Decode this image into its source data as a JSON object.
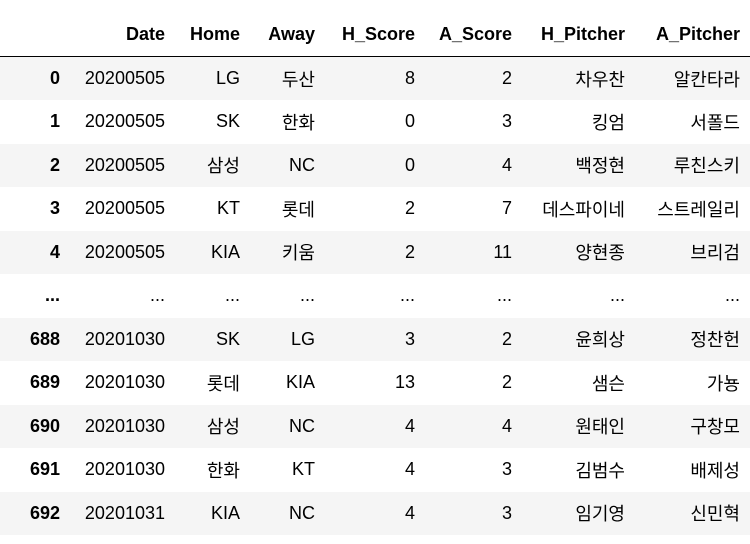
{
  "table": {
    "index_header": "",
    "columns": [
      "Date",
      "Home",
      "Away",
      "H_Score",
      "A_Score",
      "H_Pitcher",
      "A_Pitcher"
    ],
    "rows": [
      {
        "index": "0",
        "cells": [
          "20200505",
          "LG",
          "두산",
          "8",
          "2",
          "차우찬",
          "알칸타라"
        ]
      },
      {
        "index": "1",
        "cells": [
          "20200505",
          "SK",
          "한화",
          "0",
          "3",
          "킹엄",
          "서폴드"
        ]
      },
      {
        "index": "2",
        "cells": [
          "20200505",
          "삼성",
          "NC",
          "0",
          "4",
          "백정현",
          "루친스키"
        ]
      },
      {
        "index": "3",
        "cells": [
          "20200505",
          "KT",
          "롯데",
          "2",
          "7",
          "데스파이네",
          "스트레일리"
        ]
      },
      {
        "index": "4",
        "cells": [
          "20200505",
          "KIA",
          "키움",
          "2",
          "11",
          "양현종",
          "브리검"
        ]
      },
      {
        "index": "...",
        "cells": [
          "...",
          "...",
          "...",
          "...",
          "...",
          "...",
          "..."
        ]
      },
      {
        "index": "688",
        "cells": [
          "20201030",
          "SK",
          "LG",
          "3",
          "2",
          "윤희상",
          "정찬헌"
        ]
      },
      {
        "index": "689",
        "cells": [
          "20201030",
          "롯데",
          "KIA",
          "13",
          "2",
          "샘슨",
          "가뇽"
        ]
      },
      {
        "index": "690",
        "cells": [
          "20201030",
          "삼성",
          "NC",
          "4",
          "4",
          "원태인",
          "구창모"
        ]
      },
      {
        "index": "691",
        "cells": [
          "20201030",
          "한화",
          "KT",
          "4",
          "3",
          "김범수",
          "배제성"
        ]
      },
      {
        "index": "692",
        "cells": [
          "20201031",
          "KIA",
          "NC",
          "4",
          "3",
          "임기영",
          "신민혁"
        ]
      }
    ]
  }
}
